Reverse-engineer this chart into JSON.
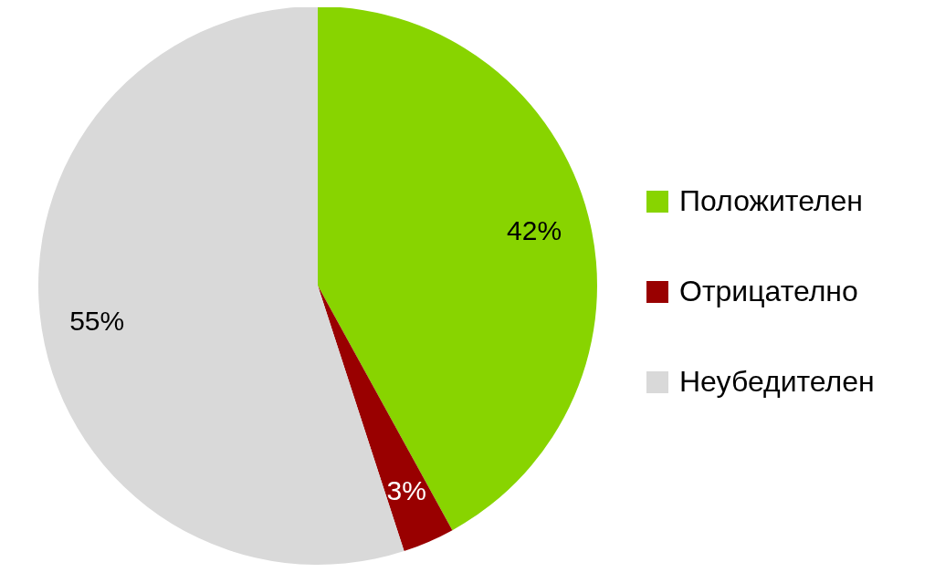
{
  "chart_data": {
    "type": "pie",
    "categories": [
      "Положителен",
      "Отрицателно",
      "Неубедителен"
    ],
    "values": [
      42,
      3,
      55
    ],
    "value_labels": [
      "42%",
      "3%",
      "55%"
    ],
    "colors": [
      "#88d400",
      "#990000",
      "#d9d9d9"
    ],
    "legend": "right"
  }
}
